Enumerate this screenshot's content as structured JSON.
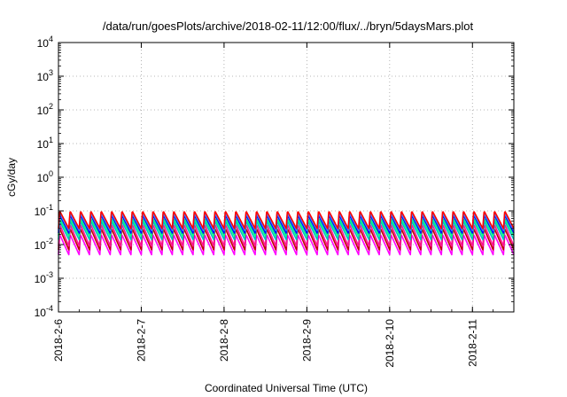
{
  "chart_data": {
    "type": "line",
    "title": "/data/run/goesPlots/archive/2018-02-11/12:00/flux/../bryn/5daysMars.plot",
    "xlabel": "Coordinated Universal Time (UTC)",
    "ylabel": "cGy/day",
    "yscale": "log",
    "ylim": [
      0.0001,
      10000
    ],
    "xlim": [
      "2018-02-06 00:00",
      "2018-02-11 12:00"
    ],
    "grid": true,
    "x_ticks": [
      "2018-2-6",
      "2018-2-7",
      "2018-2-8",
      "2018-2-9",
      "2018-2-10",
      "2018-2-11"
    ],
    "y_ticks": [
      {
        "value": 0.0001,
        "base": "10",
        "exp": "-4"
      },
      {
        "value": 0.001,
        "base": "10",
        "exp": "-3"
      },
      {
        "value": 0.01,
        "base": "10",
        "exp": "-2"
      },
      {
        "value": 0.1,
        "base": "10",
        "exp": "-1"
      },
      {
        "value": 1,
        "base": "10",
        "exp": "0"
      },
      {
        "value": 10,
        "base": "10",
        "exp": "1"
      },
      {
        "value": 100,
        "base": "10",
        "exp": "2"
      },
      {
        "value": 1000,
        "base": "10",
        "exp": "3"
      },
      {
        "value": 10000,
        "base": "10",
        "exp": "4"
      }
    ],
    "sawtooth_period_hours": 3,
    "series": [
      {
        "color": "#ff00ff",
        "peak": 0.02,
        "trough": 0.005
      },
      {
        "color": "#c00000",
        "peak": 0.03,
        "trough": 0.007
      },
      {
        "color": "#ff1493",
        "peak": 0.04,
        "trough": 0.009
      },
      {
        "color": "#00c0c0",
        "peak": 0.05,
        "trough": 0.014
      },
      {
        "color": "#00ff80",
        "peak": 0.06,
        "trough": 0.018
      },
      {
        "color": "#0000ff",
        "peak": 0.075,
        "trough": 0.022
      },
      {
        "color": "#4080ff",
        "peak": 0.085,
        "trough": 0.026
      },
      {
        "color": "#ff0000",
        "peak": 0.1,
        "trough": 0.03
      }
    ]
  }
}
